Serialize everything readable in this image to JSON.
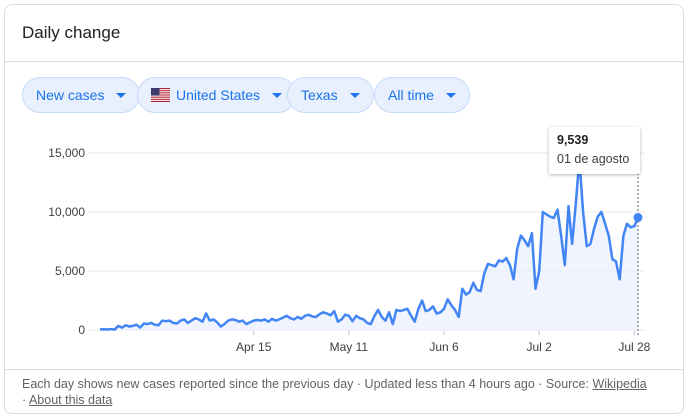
{
  "card": {
    "title": "Daily change"
  },
  "filters": [
    {
      "label": "New cases",
      "icon": ""
    },
    {
      "label": "United States",
      "icon": "us-flag-icon"
    },
    {
      "label": "Texas",
      "icon": ""
    },
    {
      "label": "All time",
      "icon": ""
    }
  ],
  "colors": {
    "accent": "#1a73e8",
    "line": "#4285f4",
    "chip_bg": "#e8f0fe"
  },
  "tooltip": {
    "value": "9,539",
    "date": "01 de agosto"
  },
  "footer": {
    "text": "Each day shows new cases reported since the previous day · Updated less than 4 hours ago · Source:",
    "source_link": "Wikipedia",
    "sep": "·",
    "about_link": "About this data"
  },
  "chart_data": {
    "type": "line",
    "series": [
      {
        "values": [
          50,
          60,
          40,
          80,
          30,
          350,
          200,
          400,
          300,
          350,
          450,
          200,
          550,
          500,
          600,
          450,
          400,
          800,
          750,
          800,
          600,
          550,
          800,
          900,
          600,
          800,
          1000,
          900,
          700,
          1400,
          800,
          900,
          650,
          300,
          500,
          800,
          900,
          850,
          700,
          800,
          500,
          650,
          800,
          850,
          800,
          900,
          700,
          950,
          800,
          900,
          1050,
          1200,
          1000,
          900,
          1100,
          950,
          1200,
          1300,
          1150,
          1100,
          1350,
          1500,
          1400,
          1250,
          1600,
          700,
          900,
          1300,
          1200,
          750,
          1200,
          1000,
          900,
          600,
          500,
          1200,
          1700,
          1100,
          800,
          1500,
          500,
          1700,
          1600,
          1700,
          1800,
          1200,
          700,
          1800,
          2500,
          1600,
          1700,
          2000,
          1400,
          1500,
          1800,
          2600,
          2100,
          1700,
          1100,
          3500,
          3000,
          3200,
          4000,
          3400,
          3300,
          4800,
          5600,
          5500,
          5400,
          5900,
          5800,
          6100,
          5500,
          4300,
          6900,
          8000,
          7600,
          7100,
          8200,
          3500,
          5000,
          10000,
          9800,
          9600,
          9500,
          10200,
          8000,
          5500,
          10500,
          7300,
          10700,
          14500,
          10000,
          7100,
          7300,
          8600,
          9600,
          10000,
          9000,
          8000,
          6000,
          5800,
          4300,
          8000,
          9000,
          8700,
          8800,
          9539
        ],
        "x_start": "Mar 4",
        "x_end": "Aug 1"
      }
    ],
    "xticks": [
      "Apr 15",
      "May 11",
      "Jun 6",
      "Jul 2",
      "Jul 28"
    ],
    "yticks": [
      "0",
      "5,000",
      "10,000",
      "15,000"
    ],
    "ylim": [
      0,
      15000
    ],
    "grid": true,
    "highlight": {
      "value": 9539,
      "date": "01 de agosto"
    }
  }
}
